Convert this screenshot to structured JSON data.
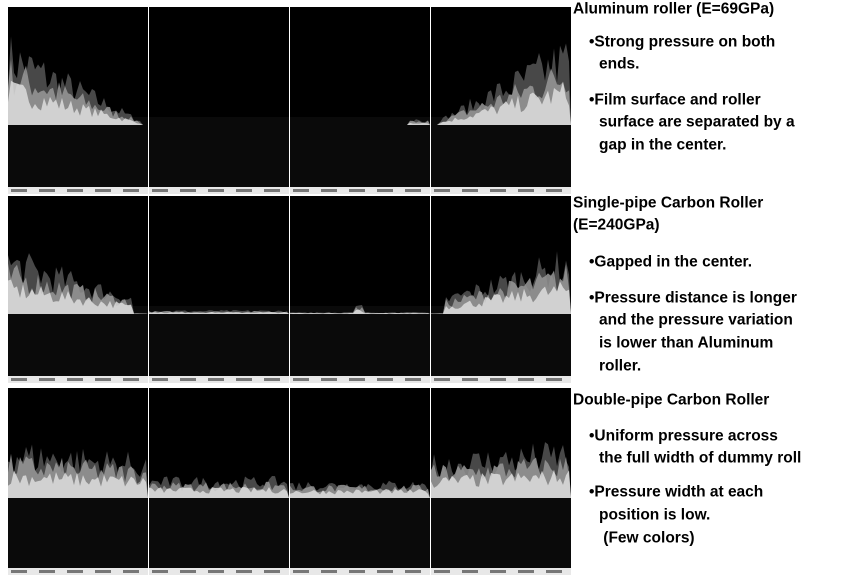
{
  "sections": [
    {
      "heading": [
        "Aluminum roller (E=69GPa)"
      ],
      "bullets": [
        [
          "•Strong pressure on both",
          "ends."
        ],
        [
          "•Film surface and roller",
          "surface are separated by a",
          "gap in the center."
        ]
      ]
    },
    {
      "heading": [
        "Single-pipe Carbon Roller",
        "(E=240GPa)"
      ],
      "bullets": [
        [
          "•Gapped in the center."
        ],
        [
          "•Pressure distance is longer",
          "and the pressure variation",
          "is lower than Aluminum",
          "roller."
        ]
      ]
    },
    {
      "heading": [
        "Double-pipe Carbon Roller"
      ],
      "bullets": [
        [
          "•Uniform pressure across",
          "the full width of dummy roll"
        ],
        [
          "•Pressure width at each",
          "position is low.",
          " (Few colors)"
        ]
      ]
    }
  ]
}
